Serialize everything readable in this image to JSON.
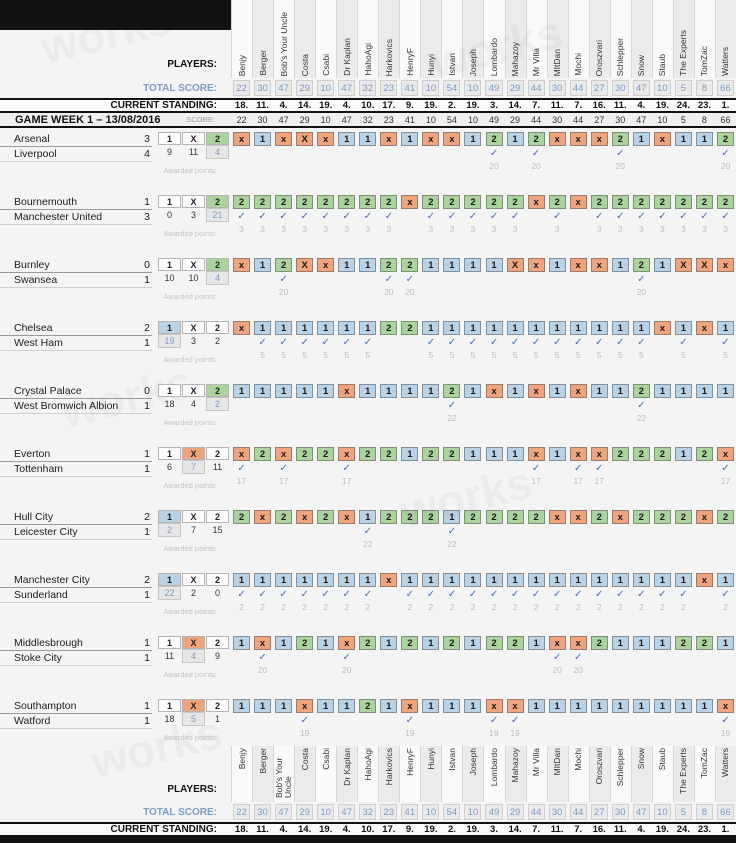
{
  "watermark": "works",
  "check_glyph": "✓",
  "colors": {
    "pick_1": "#b9d2e5",
    "pick_x": "#f0a47e",
    "pick_2": "#abd39e",
    "check": "#4170b4",
    "score_text": "#7b9cc5"
  },
  "labels": {
    "players": "PLAYERS:",
    "total_score": "TOTAL SCORE:",
    "current_standing": "CURRENT STANDING:",
    "awarded_points": "Awarded points:",
    "score": "SCORE:"
  },
  "gameweek": {
    "title": "GAME WEEK 1 – 13/08/2016",
    "scores": [
      22,
      30,
      47,
      29,
      10,
      47,
      32,
      23,
      41,
      10,
      54,
      10,
      49,
      29,
      44,
      30,
      44,
      27,
      30,
      47,
      10,
      5,
      8,
      66
    ]
  },
  "outcome_headers": [
    "1",
    "X",
    "2"
  ],
  "players": [
    {
      "name": "Benjy",
      "total": 22,
      "standing": "18."
    },
    {
      "name": "Berger",
      "total": 30,
      "standing": "11."
    },
    {
      "name": "Bob's Your Uncle",
      "total": 47,
      "standing": "4."
    },
    {
      "name": "Costa",
      "total": 29,
      "standing": "14."
    },
    {
      "name": "Csabi",
      "total": 10,
      "standing": "19."
    },
    {
      "name": "Dr Kaplan",
      "total": 47,
      "standing": "4."
    },
    {
      "name": "HahoAgi",
      "total": 32,
      "standing": "10."
    },
    {
      "name": "Harkovics",
      "total": 23,
      "standing": "17."
    },
    {
      "name": "HenryF",
      "total": 41,
      "standing": "9."
    },
    {
      "name": "Hunyi",
      "total": 10,
      "standing": "19."
    },
    {
      "name": "Istvan",
      "total": 54,
      "standing": "2."
    },
    {
      "name": "Joseph",
      "total": 10,
      "standing": "19."
    },
    {
      "name": "Lombardo",
      "total": 49,
      "standing": "3."
    },
    {
      "name": "Mahazoy",
      "total": 29,
      "standing": "14."
    },
    {
      "name": "Mr Villa",
      "total": 44,
      "standing": "7."
    },
    {
      "name": "MItDan",
      "total": 30,
      "standing": "11."
    },
    {
      "name": "Mochi",
      "total": 44,
      "standing": "7."
    },
    {
      "name": "Oroszvari",
      "total": 27,
      "standing": "16."
    },
    {
      "name": "Schlepper",
      "total": 30,
      "standing": "11."
    },
    {
      "name": "Snow",
      "total": 47,
      "standing": "4."
    },
    {
      "name": "Staub",
      "total": 10,
      "standing": "19."
    },
    {
      "name": "The Experts",
      "total": 5,
      "standing": "24."
    },
    {
      "name": "TomZac",
      "total": 8,
      "standing": "23."
    },
    {
      "name": "Watters",
      "total": 66,
      "standing": "1."
    }
  ],
  "matches": [
    {
      "home": "Arsenal",
      "away": "Liverpool",
      "home_score": 3,
      "away_score": 4,
      "result": "2",
      "counts": [
        9,
        11,
        4
      ],
      "points": 20,
      "picks": [
        "x",
        "1",
        "x",
        "X",
        "x",
        "1",
        "1",
        "x",
        "1",
        "x",
        "x",
        "1",
        "2",
        "1",
        "2",
        "x",
        "x",
        "x",
        "2",
        "1",
        "x",
        "1",
        "1",
        "2"
      ]
    },
    {
      "home": "Bournemouth",
      "away": "Manchester United",
      "home_score": 1,
      "away_score": 3,
      "result": "2",
      "counts": [
        0,
        3,
        21
      ],
      "points": 3,
      "picks": [
        "2",
        "2",
        "2",
        "2",
        "2",
        "2",
        "2",
        "2",
        "x",
        "2",
        "2",
        "2",
        "2",
        "2",
        "x",
        "2",
        "x",
        "2",
        "2",
        "2",
        "2",
        "2",
        "2",
        "2"
      ]
    },
    {
      "home": "Burnley",
      "away": "Swansea",
      "home_score": 0,
      "away_score": 1,
      "result": "2",
      "counts": [
        10,
        10,
        4
      ],
      "points": 20,
      "picks": [
        "x",
        "1",
        "2",
        "X",
        "x",
        "1",
        "1",
        "2",
        "2",
        "1",
        "1",
        "1",
        "1",
        "X",
        "x",
        "1",
        "x",
        "x",
        "1",
        "2",
        "1",
        "X",
        "X",
        "x"
      ]
    },
    {
      "home": "Chelsea",
      "away": "West Ham",
      "home_score": 2,
      "away_score": 1,
      "result": "1",
      "counts": [
        19,
        3,
        2
      ],
      "points": 5,
      "picks": [
        "x",
        "1",
        "1",
        "1",
        "1",
        "1",
        "1",
        "2",
        "2",
        "1",
        "1",
        "1",
        "1",
        "1",
        "1",
        "1",
        "1",
        "1",
        "1",
        "1",
        "x",
        "1",
        "x",
        "1"
      ]
    },
    {
      "home": "Crystal Palace",
      "away": "West Bromwich Albion",
      "home_score": 0,
      "away_score": 1,
      "result": "2",
      "counts": [
        18,
        4,
        2
      ],
      "points": 22,
      "picks": [
        "1",
        "1",
        "1",
        "1",
        "1",
        "x",
        "1",
        "1",
        "1",
        "1",
        "2",
        "1",
        "x",
        "1",
        "x",
        "1",
        "x",
        "1",
        "1",
        "2",
        "1",
        "1",
        "1",
        "1"
      ]
    },
    {
      "home": "Everton",
      "away": "Tottenham",
      "home_score": 1,
      "away_score": 1,
      "result": "X",
      "counts": [
        6,
        7,
        11
      ],
      "points": 17,
      "picks": [
        "x",
        "2",
        "x",
        "2",
        "2",
        "x",
        "2",
        "2",
        "1",
        "2",
        "2",
        "1",
        "1",
        "1",
        "x",
        "1",
        "x",
        "x",
        "2",
        "2",
        "2",
        "1",
        "2",
        "x"
      ]
    },
    {
      "home": "Hull City",
      "away": "Leicester City",
      "home_score": 2,
      "away_score": 1,
      "result": "1",
      "counts": [
        2,
        7,
        15
      ],
      "points": 22,
      "picks": [
        "2",
        "x",
        "2",
        "x",
        "2",
        "x",
        "1",
        "2",
        "2",
        "2",
        "1",
        "2",
        "2",
        "2",
        "2",
        "x",
        "x",
        "2",
        "x",
        "2",
        "2",
        "2",
        "x",
        "2"
      ]
    },
    {
      "home": "Manchester City",
      "away": "Sunderland",
      "home_score": 2,
      "away_score": 1,
      "result": "1",
      "counts": [
        22,
        2,
        0
      ],
      "points": 2,
      "picks": [
        "1",
        "1",
        "1",
        "1",
        "1",
        "1",
        "1",
        "x",
        "1",
        "1",
        "1",
        "1",
        "1",
        "1",
        "1",
        "1",
        "1",
        "1",
        "1",
        "1",
        "1",
        "1",
        "x",
        "1"
      ]
    },
    {
      "home": "Middlesbrough",
      "away": "Stoke City",
      "home_score": 1,
      "away_score": 1,
      "result": "X",
      "counts": [
        11,
        4,
        9
      ],
      "points": 20,
      "picks": [
        "1",
        "x",
        "1",
        "2",
        "1",
        "x",
        "2",
        "1",
        "2",
        "1",
        "2",
        "1",
        "2",
        "2",
        "1",
        "x",
        "x",
        "2",
        "1",
        "1",
        "1",
        "2",
        "2",
        "1"
      ]
    },
    {
      "home": "Southampton",
      "away": "Watford",
      "home_score": 1,
      "away_score": 1,
      "result": "X",
      "counts": [
        18,
        5,
        1
      ],
      "points": 19,
      "picks": [
        "1",
        "1",
        "1",
        "x",
        "1",
        "1",
        "2",
        "1",
        "x",
        "1",
        "1",
        "1",
        "x",
        "x",
        "1",
        "1",
        "1",
        "1",
        "1",
        "1",
        "1",
        "1",
        "1",
        "x"
      ]
    }
  ]
}
